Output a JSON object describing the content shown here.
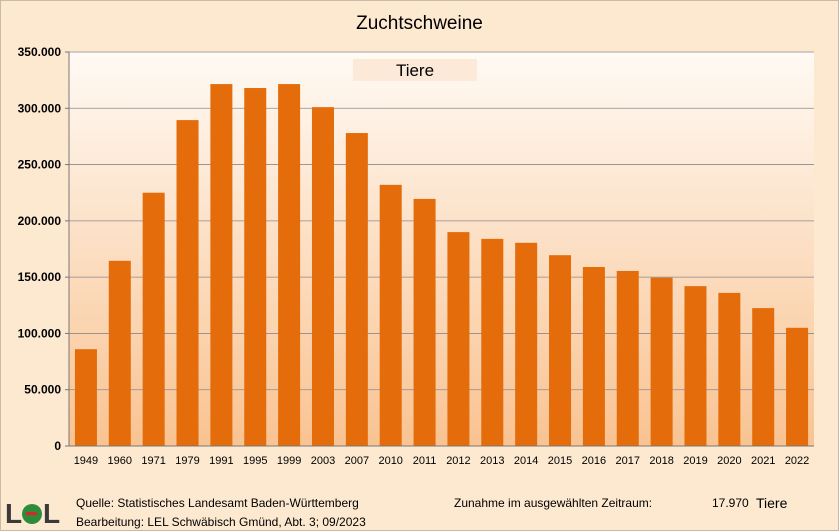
{
  "chart_data": {
    "type": "bar",
    "title": "Zuchtschweine",
    "legend_label": "Tiere",
    "categories": [
      "1949",
      "1960",
      "1971",
      "1979",
      "1991",
      "1995",
      "1999",
      "2003",
      "2007",
      "2010",
      "2011",
      "2012",
      "2013",
      "2014",
      "2015",
      "2016",
      "2017",
      "2018",
      "2019",
      "2020",
      "2021",
      "2022"
    ],
    "series": [
      {
        "name": "Tiere",
        "values": [
          86000,
          164500,
          225000,
          289500,
          321500,
          318000,
          321500,
          301000,
          278000,
          232000,
          219500,
          190000,
          184000,
          180500,
          169500,
          159000,
          155500,
          149500,
          142000,
          136000,
          122500,
          105000
        ]
      }
    ],
    "ylim": [
      0,
      350000
    ],
    "yticks": [
      0,
      50000,
      100000,
      150000,
      200000,
      250000,
      300000,
      350000
    ],
    "ytick_labels": [
      "0",
      "50.000",
      "100.000",
      "150.000",
      "200.000",
      "250.000",
      "300.000",
      "350.000"
    ],
    "bar_color": "#e46c0a",
    "grid": true,
    "legend_position": "top-center"
  },
  "footer": {
    "source": "Quelle: Statistisches Landesamt Baden-Württemberg",
    "editing": "Bearbeitung: LEL Schwäbisch Gmünd, Abt. 3; 09/2023",
    "change_label": "Zunahme im ausgewählten Zeitraum:",
    "change_value": "17.970",
    "change_unit": "Tiere"
  },
  "logo": {
    "text": "LEL",
    "colors": [
      "#3a3a3a",
      "#2e8b3a",
      "#d9262c"
    ]
  }
}
